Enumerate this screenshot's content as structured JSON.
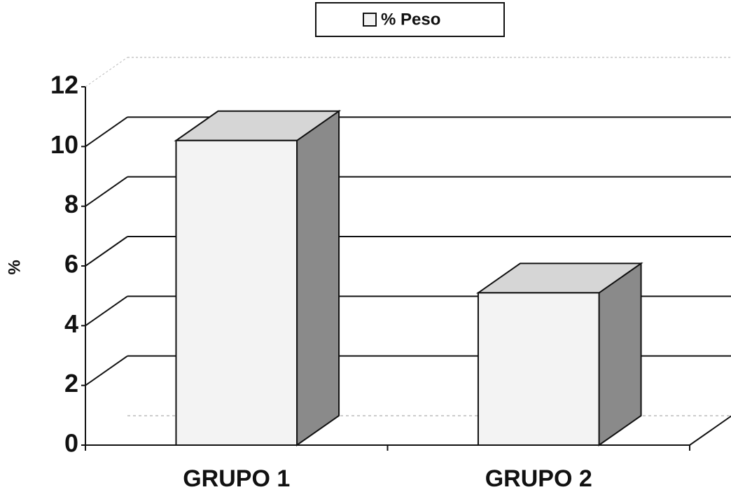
{
  "chart_data": {
    "type": "bar3d",
    "y_label": "%",
    "categories": [
      "GRUPO 1",
      "GRUPO 2"
    ],
    "series": [
      {
        "name": "% Peso",
        "color": "#f3f3f3",
        "values": [
          10.2,
          5.1
        ]
      }
    ],
    "ylim": [
      0,
      12
    ],
    "yticks": [
      0,
      2,
      4,
      6,
      8,
      10,
      12
    ],
    "grid": true,
    "legend": "top"
  }
}
